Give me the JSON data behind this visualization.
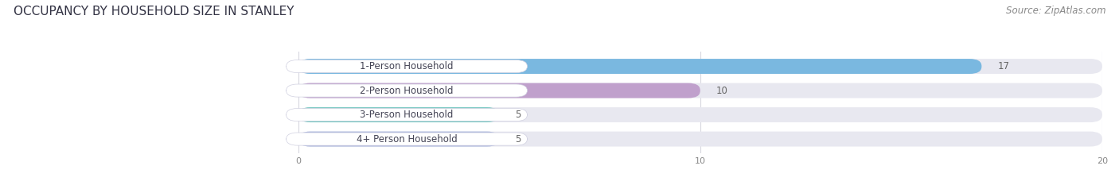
{
  "title": "OCCUPANCY BY HOUSEHOLD SIZE IN STANLEY",
  "source": "Source: ZipAtlas.com",
  "categories": [
    "1-Person Household",
    "2-Person Household",
    "3-Person Household",
    "4+ Person Household"
  ],
  "values": [
    17,
    10,
    5,
    5
  ],
  "bar_colors": [
    "#7ab8e0",
    "#c0a0cc",
    "#72c8c0",
    "#a8b4dc"
  ],
  "xlim_data": [
    0,
    20
  ],
  "xticks": [
    0,
    10,
    20
  ],
  "title_fontsize": 11,
  "source_fontsize": 8.5,
  "label_fontsize": 8.5,
  "value_fontsize": 8.5,
  "background_color": "#ffffff",
  "bar_bg_color": "#e8e8f0",
  "label_box_color": "#ffffff",
  "label_text_color": "#444455",
  "grid_color": "#d8d8e0"
}
